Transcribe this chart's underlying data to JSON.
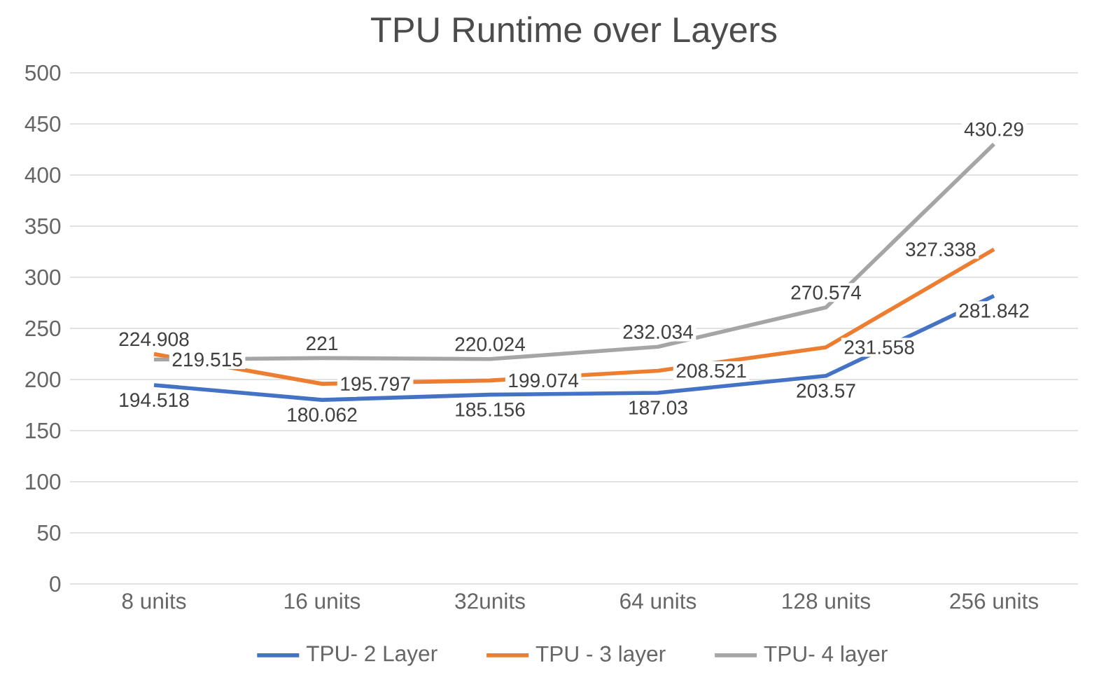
{
  "chart_data": {
    "type": "line",
    "title": "TPU  Runtime over Layers",
    "categories": [
      "8 units",
      "16 units",
      "32units",
      "64 units",
      "128 units",
      "256 units"
    ],
    "series": [
      {
        "name": "TPU- 2 Layer",
        "color": "#4472c4",
        "values": [
          194.518,
          180.062,
          185.156,
          187.03,
          203.57,
          281.842
        ]
      },
      {
        "name": "TPU - 3 layer",
        "color": "#ed7d31",
        "values": [
          224.908,
          195.797,
          199.074,
          208.521,
          231.558,
          327.338
        ]
      },
      {
        "name": "TPU- 4 layer",
        "color": "#a5a5a5",
        "values": [
          219.515,
          221,
          220.024,
          232.034,
          270.574,
          430.29
        ]
      }
    ],
    "ylim": [
      0,
      500
    ],
    "yticks": [
      0,
      50,
      100,
      150,
      200,
      250,
      300,
      350,
      400,
      450,
      500
    ],
    "grid": "y",
    "legend": "bottom",
    "data_labels": true,
    "marker": "none",
    "line_style": "solid"
  }
}
